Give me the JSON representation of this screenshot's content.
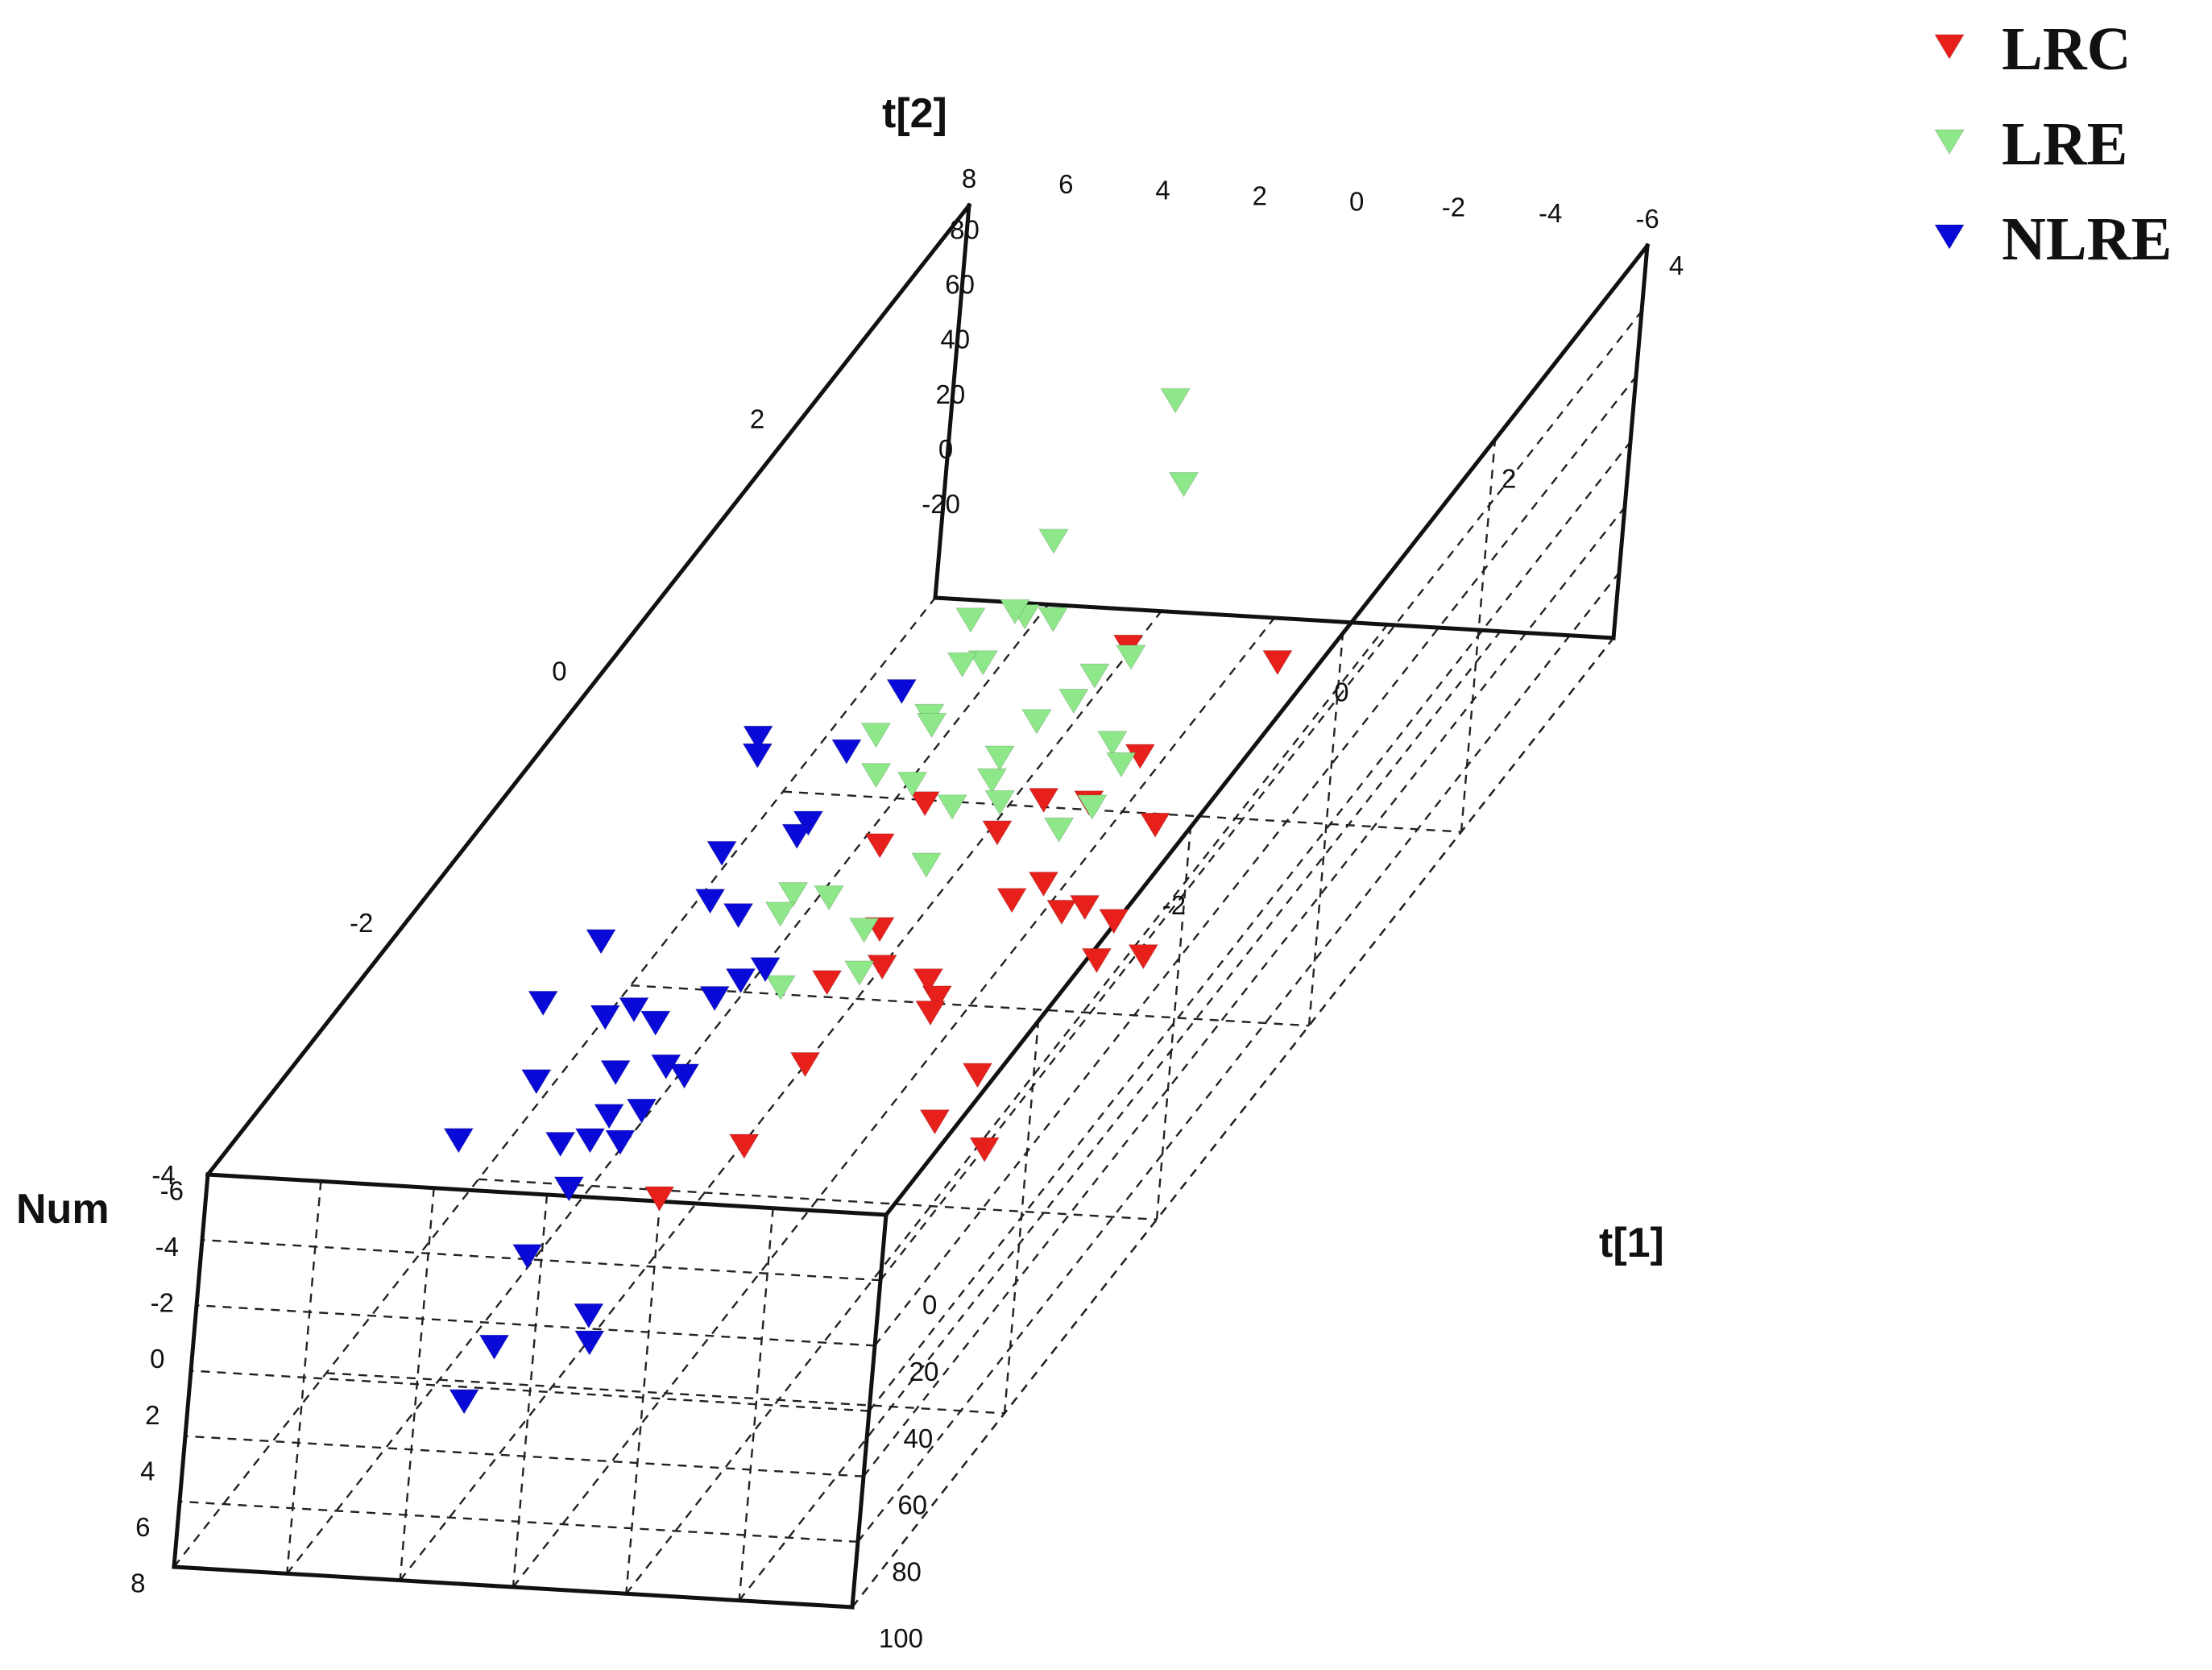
{
  "chart_data": {
    "type": "scatter",
    "title": "",
    "axes": {
      "x": {
        "label": "t[1]",
        "ticks": [
          "0",
          "20",
          "40",
          "60",
          "80",
          "100"
        ]
      },
      "y": {
        "label": "Num",
        "ticks": [
          "-6",
          "-4",
          "-2",
          "0",
          "2",
          "4",
          "6",
          "8"
        ]
      },
      "z": {
        "label": "t[2]",
        "ticks_left": [
          "-4",
          "-2",
          "0",
          "2"
        ],
        "ticks_right": [
          "-2",
          "0",
          "2",
          "4"
        ]
      },
      "top_back_ticks": [
        "80",
        "60",
        "40",
        "20",
        "0",
        "-20"
      ],
      "top_right_ticks": [
        "-6",
        "-4",
        "-2",
        "0",
        "2",
        "4",
        "6",
        "8"
      ]
    },
    "legend": {
      "position": "top-right"
    },
    "series": [
      {
        "name": "LRC",
        "color": "#e8201c",
        "points": [
          [
            -3.1,
            0.4,
            1.5
          ],
          [
            -1.0,
            0.3,
            1.4
          ],
          [
            -4.6,
            1.3,
            0.6
          ],
          [
            -3.5,
            1.5,
            0.5
          ],
          [
            -1.7,
            0.1,
            0.5
          ],
          [
            -2.7,
            0.5,
            0.3
          ],
          [
            -2.1,
            0.5,
            0.3
          ],
          [
            -4.7,
            1.2,
            0.2
          ],
          [
            -1.2,
            0.8,
            0.3
          ],
          [
            -2.0,
            1.7,
            0.0
          ],
          [
            -1.3,
            1.8,
            0.0
          ],
          [
            -1.7,
            1.6,
            0.0
          ],
          [
            -3.1,
            2.4,
            -0.4
          ],
          [
            -0.7,
            1.0,
            -0.7
          ],
          [
            -3.6,
            0.7,
            -0.7
          ],
          [
            -2.0,
            0.3,
            -0.6
          ],
          [
            -1.6,
            0.0,
            -0.6
          ],
          [
            -2.9,
            1.5,
            -0.7
          ],
          [
            -3.9,
            1.0,
            -1.0
          ],
          [
            -3.3,
            0.9,
            -0.9
          ],
          [
            -0.2,
            1.1,
            -0.6
          ],
          [
            -2.5,
            1.4,
            -1.0
          ],
          [
            -3.8,
            1.9,
            -1.9
          ],
          [
            -3.2,
            0.7,
            -1.8
          ],
          [
            -1.2,
            1.1,
            -2.0
          ],
          [
            -0.8,
            0.5,
            -1.9
          ],
          [
            -0.4,
            1.3,
            -2.1
          ],
          [
            -4.3,
            1.8,
            -2.4
          ]
        ]
      },
      {
        "name": "LRE",
        "color": "#8ee88a",
        "points": [
          [
            -4.1,
            -1.2,
            2.7
          ],
          [
            -5.1,
            0.4,
            2.3
          ],
          [
            -3.5,
            1.4,
            1.9
          ],
          [
            -3.0,
            -1.5,
            1.9
          ],
          [
            -5.0,
            0.8,
            1.5
          ],
          [
            -4.0,
            1.3,
            1.3
          ],
          [
            -3.4,
            0.7,
            1.4
          ],
          [
            -4.3,
            1.9,
            1.1
          ],
          [
            -3.2,
            2.0,
            1.5
          ],
          [
            -5.1,
            -0.1,
            1.4
          ],
          [
            -4.5,
            0.0,
            1.5
          ],
          [
            -5.2,
            0.9,
            1.1
          ],
          [
            -4.3,
            -0.7,
            1.2
          ],
          [
            -3.9,
            -0.4,
            1.3
          ],
          [
            -2.5,
            1.3,
            1.0
          ],
          [
            -4.6,
            -0.4,
            0.9
          ],
          [
            -4.0,
            1.1,
            0.9
          ],
          [
            -3.2,
            0.3,
            1.0
          ],
          [
            -5.5,
            1.3,
            0.8
          ],
          [
            -2.5,
            1.4,
            0.7
          ],
          [
            -4.6,
            0.0,
            0.6
          ],
          [
            -4.9,
            1.2,
            0.7
          ],
          [
            -2.8,
            1.6,
            0.6
          ],
          [
            -3.5,
            1.0,
            0.5
          ],
          [
            -4.4,
            2.1,
            0.5
          ],
          [
            -5.1,
            -0.2,
            0.4
          ],
          [
            -3.9,
            0.7,
            0.3
          ],
          [
            -4.7,
            2.4,
            0.1
          ],
          [
            -5.9,
            2.3,
            0.3
          ],
          [
            -5.4,
            2.8,
            -0.2
          ],
          [
            -4.6,
            2.9,
            0.0
          ],
          [
            -5.2,
            1.9,
            0.1
          ],
          [
            -5.6,
            1.8,
            -0.1
          ]
        ]
      },
      {
        "name": "NLRE",
        "color": "#0a0ad8",
        "points": [
          [
            -6.6,
            2.4,
            2.0
          ],
          [
            -6.7,
            2.4,
            1.5
          ],
          [
            -6.9,
            3.2,
            1.3
          ],
          [
            -6.7,
            2.8,
            1.0
          ],
          [
            -7.1,
            0.8,
            0.8
          ],
          [
            -7.2,
            1.3,
            0.9
          ],
          [
            -7.0,
            1.9,
            0.4
          ],
          [
            -7.1,
            2.7,
            0.4
          ],
          [
            -6.6,
            2.7,
            0.3
          ],
          [
            -6.9,
            3.3,
            -0.3
          ],
          [
            -6.6,
            3.8,
            -0.4
          ],
          [
            -7.2,
            3.1,
            -0.3
          ],
          [
            -5.7,
            2.0,
            -0.7
          ],
          [
            -5.6,
            2.1,
            -0.5
          ],
          [
            -5.4,
            2.1,
            -0.4
          ],
          [
            -7.6,
            1.8,
            -0.4
          ],
          [
            -6.7,
            2.9,
            -0.9
          ],
          [
            -7.4,
            2.5,
            -1.2
          ],
          [
            -6.9,
            2.0,
            -0.9
          ],
          [
            -6.9,
            3.3,
            -1.3
          ],
          [
            -5.9,
            3.1,
            -0.8
          ],
          [
            -7.4,
            1.2,
            -1.2
          ],
          [
            -6.4,
            3.0,
            -1.2
          ],
          [
            -6.2,
            3.3,
            -1.0
          ],
          [
            -6.4,
            3.0,
            -1.4
          ],
          [
            -6.4,
            3.4,
            -1.6
          ],
          [
            -6.0,
            3.0,
            -1.4
          ],
          [
            -7.8,
            2.5,
            -1.7
          ],
          [
            -6.2,
            3.3,
            -2.2
          ],
          [
            -5.1,
            3.8,
            -2.4
          ],
          [
            -6.2,
            4.2,
            -2.5
          ],
          [
            -6.2,
            4.5,
            -2.8
          ],
          [
            -4.5,
            3.2,
            -2.9
          ]
        ]
      }
    ]
  }
}
